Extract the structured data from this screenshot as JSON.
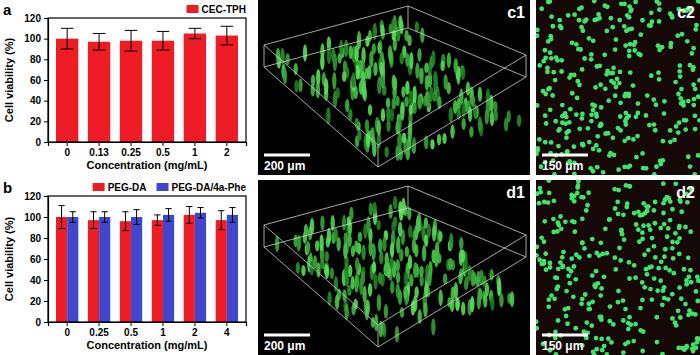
{
  "chart_data": [
    {
      "type": "bar",
      "annotations": [
        "a"
      ],
      "x_label": "Concentration (mg/mL)",
      "y_label": "Cell viability (%)",
      "categories": [
        "0",
        "0.13",
        "0.25",
        "0.5",
        "1",
        "2"
      ],
      "series": [
        {
          "name": "CEC-TPH",
          "color": "#ee1c24",
          "values": [
            100,
            97,
            98,
            98,
            105,
            103
          ],
          "errors": [
            10,
            8,
            10,
            9,
            5,
            9
          ]
        }
      ],
      "ylim": [
        0,
        120
      ],
      "yticks": [
        0,
        20,
        40,
        60,
        80,
        100,
        120
      ],
      "legend": "upper right"
    },
    {
      "type": "bar",
      "annotations": [
        "b"
      ],
      "x_label": "Concentration (mg/mL)",
      "y_label": "Cell viability (%)",
      "categories": [
        "0",
        "0.25",
        "0.5",
        "1",
        "2",
        "4"
      ],
      "series": [
        {
          "name": "PEG-DA",
          "color": "#ee1c24",
          "values": [
            100,
            97,
            96,
            97,
            102,
            97
          ],
          "errors": [
            11,
            8,
            9,
            5,
            8,
            9
          ]
        },
        {
          "name": "PEG-DA/4a-Phe",
          "color": "#3f48cc",
          "values": [
            100,
            100,
            100,
            102,
            104,
            102
          ],
          "errors": [
            5,
            5,
            7,
            6,
            5,
            7
          ]
        }
      ],
      "ylim": [
        0,
        120
      ],
      "yticks": [
        0,
        20,
        40,
        60,
        80,
        100,
        120
      ],
      "legend": "upper right"
    }
  ],
  "images": [
    {
      "label": "c1",
      "scale_bar": "200 μm"
    },
    {
      "label": "c2",
      "scale_bar": "150 μm"
    },
    {
      "label": "d1",
      "scale_bar": "200 μm"
    },
    {
      "label": "d2",
      "scale_bar": "150 μm"
    }
  ]
}
